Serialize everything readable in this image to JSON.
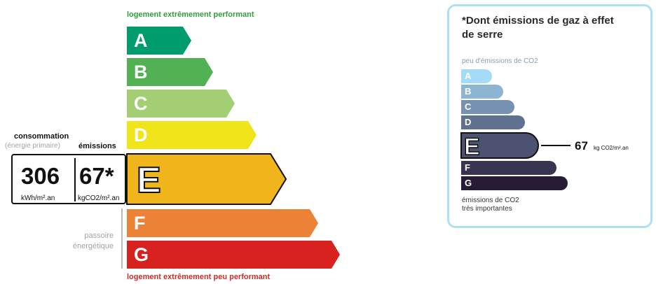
{
  "energy": {
    "top_note": "logement extrêmement performant",
    "bottom_note": "logement extrêmement peu performant",
    "classes": [
      {
        "letter": "A",
        "color": "#009c6d"
      },
      {
        "letter": "B",
        "color": "#52b153"
      },
      {
        "letter": "C",
        "color": "#a3ce73"
      },
      {
        "letter": "D",
        "color": "#f0e51b"
      },
      {
        "letter": "E",
        "color": "#f0b51b"
      },
      {
        "letter": "F",
        "color": "#eb8235"
      },
      {
        "letter": "G",
        "color": "#d7221f"
      }
    ],
    "current_class": "E",
    "consumption_label": "consommation",
    "primary_energy_label": "(énergie primaire)",
    "emissions_label": "émissions",
    "consumption_value": "306",
    "consumption_unit": "kWh/m².an",
    "emissions_value": "67*",
    "emissions_unit": "kgCO2/m².an",
    "passoire_line1": "passoire",
    "passoire_line2": "énergétique"
  },
  "ges": {
    "title": "*Dont émissions de gaz à effet de serre",
    "low_label": "peu d'émissions de CO2",
    "high_label_line1": "émissions de CO2",
    "high_label_line2": "très importantes",
    "classes": [
      {
        "letter": "A",
        "color": "#a4dbf8"
      },
      {
        "letter": "B",
        "color": "#8cb4d3"
      },
      {
        "letter": "C",
        "color": "#7792b1"
      },
      {
        "letter": "D",
        "color": "#60718f"
      },
      {
        "letter": "E",
        "color": "#4d5271"
      },
      {
        "letter": "F",
        "color": "#393551"
      },
      {
        "letter": "G",
        "color": "#281b35"
      }
    ],
    "current_class": "E",
    "value": "67",
    "unit": "kg CO2/m².an"
  }
}
